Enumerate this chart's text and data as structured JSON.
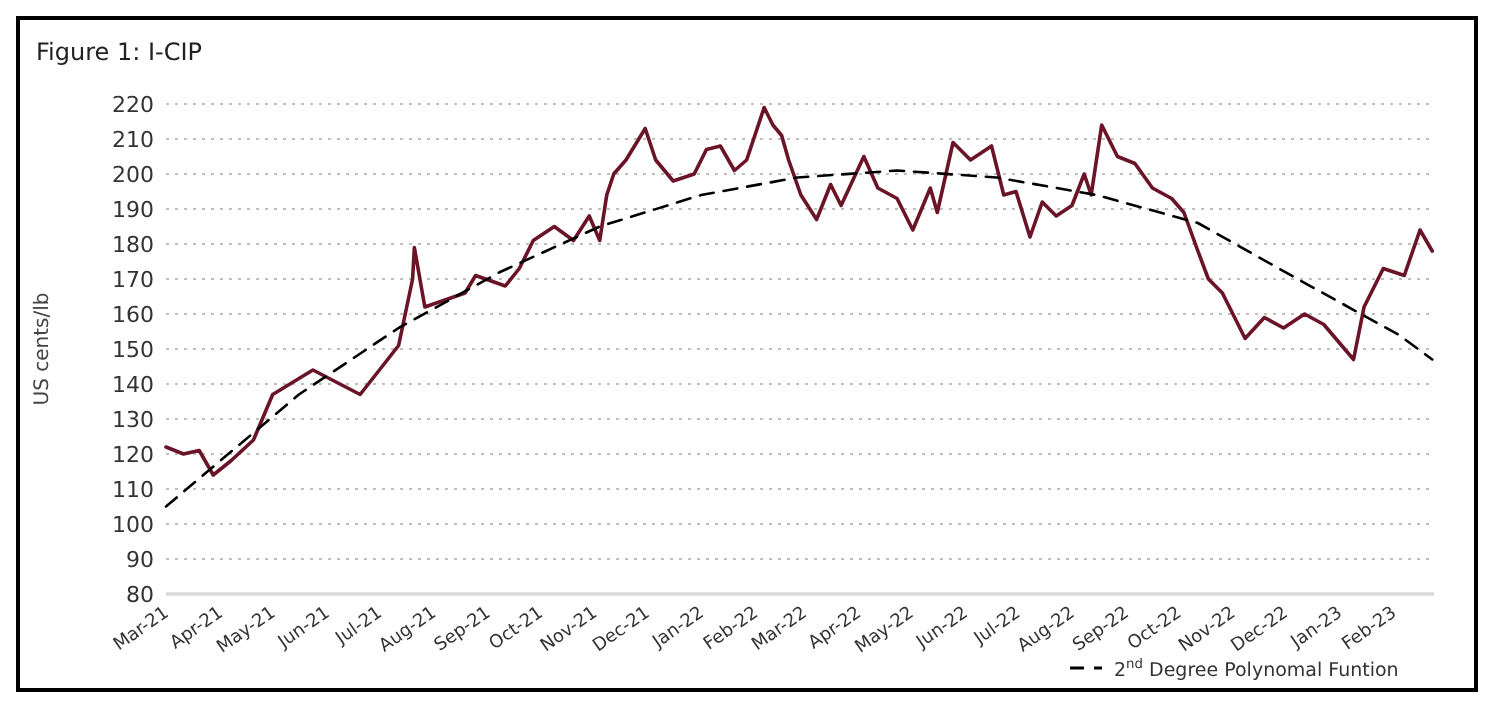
{
  "chart_data": {
    "type": "line",
    "title": "Figure 1: I-CIP",
    "ylabel": "US cents/lb",
    "xlim": [
      "2021-03-01",
      "2023-02-24"
    ],
    "xticks": [
      {
        "value": "2021-03-01",
        "label": "Mar-21"
      },
      {
        "value": "2021-04-01",
        "label": "Apr-21"
      },
      {
        "value": "2021-05-01",
        "label": "May-21"
      },
      {
        "value": "2021-06-01",
        "label": "Jun-21"
      },
      {
        "value": "2021-07-01",
        "label": "Jul-21"
      },
      {
        "value": "2021-08-01",
        "label": "Aug-21"
      },
      {
        "value": "2021-09-01",
        "label": "Sep-21"
      },
      {
        "value": "2021-10-01",
        "label": "Oct-21"
      },
      {
        "value": "2021-11-01",
        "label": "Nov-21"
      },
      {
        "value": "2021-12-01",
        "label": "Dec-21"
      },
      {
        "value": "2022-01-01",
        "label": "Jan-22"
      },
      {
        "value": "2022-02-01",
        "label": "Feb-22"
      },
      {
        "value": "2022-03-01",
        "label": "Mar-22"
      },
      {
        "value": "2022-04-01",
        "label": "Apr-22"
      },
      {
        "value": "2022-05-01",
        "label": "May-22"
      },
      {
        "value": "2022-06-01",
        "label": "Jun-22"
      },
      {
        "value": "2022-07-01",
        "label": "Jul-22"
      },
      {
        "value": "2022-08-01",
        "label": "Aug-22"
      },
      {
        "value": "2022-09-01",
        "label": "Sep-22"
      },
      {
        "value": "2022-10-01",
        "label": "Oct-22"
      },
      {
        "value": "2022-11-01",
        "label": "Nov-22"
      },
      {
        "value": "2022-12-01",
        "label": "Dec-22"
      },
      {
        "value": "2023-01-01",
        "label": "Jan-23"
      },
      {
        "value": "2023-02-01",
        "label": "Feb-23"
      }
    ],
    "ylim": [
      80,
      220
    ],
    "yticks": [
      80,
      90,
      100,
      110,
      120,
      130,
      140,
      150,
      160,
      170,
      180,
      190,
      200,
      210,
      220
    ],
    "grid": "y",
    "legend": "bottom right",
    "series": [
      {
        "color": "#6b1428",
        "line_style": "solid",
        "x": [
          "2021-03-01",
          "2021-03-11",
          "2021-03-20",
          "2021-03-28",
          "2021-04-07",
          "2021-04-20",
          "2021-05-01",
          "2021-05-24",
          "2021-06-20",
          "2021-07-12",
          "2021-07-20",
          "2021-07-21",
          "2021-07-27",
          "2021-08-19",
          "2021-08-25",
          "2021-09-11",
          "2021-09-19",
          "2021-09-27",
          "2021-10-09",
          "2021-10-20",
          "2021-10-29",
          "2021-11-04",
          "2021-11-08",
          "2021-11-12",
          "2021-11-19",
          "2021-11-30",
          "2021-12-06",
          "2021-12-16",
          "2021-12-28",
          "2022-01-04",
          "2022-01-12",
          "2022-01-20",
          "2022-01-27",
          "2022-02-06",
          "2022-02-11",
          "2022-02-16",
          "2022-02-20",
          "2022-02-27",
          "2022-03-08",
          "2022-03-16",
          "2022-03-22",
          "2022-04-04",
          "2022-04-12",
          "2022-04-23",
          "2022-05-02",
          "2022-05-12",
          "2022-05-16",
          "2022-05-25",
          "2022-06-04",
          "2022-06-16",
          "2022-06-23",
          "2022-06-30",
          "2022-07-08",
          "2022-07-15",
          "2022-07-23",
          "2022-08-01",
          "2022-08-08",
          "2022-08-12",
          "2022-08-18",
          "2022-08-27",
          "2022-09-06",
          "2022-09-16",
          "2022-09-27",
          "2022-10-04",
          "2022-10-12",
          "2022-10-18",
          "2022-10-26",
          "2022-11-08",
          "2022-11-19",
          "2022-11-30",
          "2022-12-12",
          "2022-12-23",
          "2023-01-09",
          "2023-01-15",
          "2023-01-26",
          "2023-02-07",
          "2023-02-16",
          "2023-02-23"
        ],
        "values": [
          122,
          120,
          121,
          114,
          118,
          124,
          137,
          144,
          137,
          151,
          170,
          179,
          162,
          166,
          171,
          168,
          173,
          181,
          185,
          181,
          188,
          181,
          194,
          200,
          204,
          213,
          204,
          198,
          200,
          207,
          208,
          201,
          204,
          219,
          214,
          211,
          204,
          194,
          187,
          197,
          191,
          205,
          196,
          193,
          184,
          196,
          189,
          209,
          204,
          208,
          194,
          195,
          182,
          192,
          188,
          191,
          200,
          194,
          214,
          205,
          203,
          196,
          193,
          189,
          178,
          170,
          166,
          153,
          159,
          156,
          160,
          157,
          147,
          162,
          173,
          171,
          184,
          178
        ]
      },
      {
        "name": "2$^{nd}$ Degree Polynomal Funtion",
        "color": "#000000",
        "line_style": "dashed",
        "x": [
          "2021-03-01",
          "2021-05-16",
          "2021-07-12",
          "2021-09-08",
          "2021-11-04",
          "2022-01-01",
          "2022-02-25",
          "2022-04-23",
          "2022-06-19",
          "2022-08-15",
          "2022-10-12",
          "2022-12-08",
          "2023-02-04",
          "2023-02-23"
        ],
        "values": [
          105,
          137,
          156,
          172,
          185,
          194,
          199,
          201,
          199,
          194,
          186,
          170,
          154,
          147
        ]
      }
    ]
  }
}
